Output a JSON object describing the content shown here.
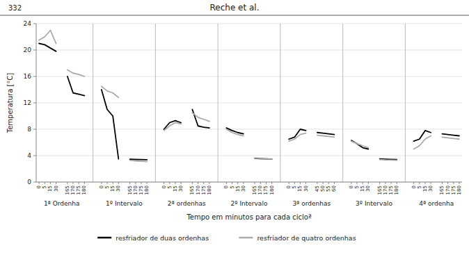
{
  "chart_data": {
    "type": "line",
    "title": "Reche et al.",
    "subtitle": "332",
    "x_label": "Tempo em minutos para cada cicloª",
    "y_label": "Temperatura [°C]",
    "annotations": [
      "1ª Ordenha",
      "1º Intervalo",
      "2ª ordenhas",
      "2º Intervalo",
      "3ª ordenhas",
      "3º Intervalo",
      "4ª ordenha"
    ],
    "categories": [
      "0",
      "5",
      "15",
      "30",
      null,
      "165",
      "170",
      "175",
      "180",
      null,
      null,
      "0",
      "5",
      "15",
      "30",
      null,
      "165",
      "170",
      "175",
      "180",
      null,
      null,
      "0",
      "5",
      "15",
      "30",
      null,
      "165",
      "170",
      "175",
      "180",
      null,
      null,
      "0",
      "5",
      "15",
      "30",
      null,
      "165",
      "170",
      "175",
      "180",
      null,
      null,
      "0",
      "5",
      "15",
      "30",
      null,
      "45",
      "50",
      "55",
      "60",
      null,
      null,
      "0",
      "5",
      "15",
      "30",
      null,
      "165",
      "170",
      "175",
      "180",
      null,
      null,
      "0",
      "5",
      "15",
      "30",
      null,
      "165",
      "170",
      "175",
      "180"
    ],
    "series": [
      {
        "name": "resfriador de duas ordenhas",
        "color": "#000000",
        "values": [
          21.0,
          20.8,
          20.3,
          19.8,
          null,
          16.0,
          13.5,
          13.3,
          13.1,
          null,
          null,
          14.0,
          11.0,
          10.0,
          3.5,
          null,
          3.45,
          3.42,
          3.4,
          3.38,
          null,
          null,
          8.0,
          9.0,
          9.3,
          9.0,
          null,
          11.0,
          8.5,
          8.3,
          8.2,
          null,
          null,
          8.2,
          7.8,
          7.5,
          7.3,
          null,
          3.6,
          3.55,
          3.5,
          3.45,
          null,
          null,
          6.5,
          6.8,
          8.0,
          7.8,
          null,
          7.5,
          7.4,
          7.3,
          7.2,
          null,
          null,
          6.3,
          5.8,
          5.2,
          5.0,
          null,
          3.5,
          3.45,
          3.42,
          3.4,
          null,
          null,
          6.2,
          6.5,
          7.8,
          7.5,
          null,
          7.3,
          7.2,
          7.1,
          7.0
        ]
      },
      {
        "name": "resfriador de quatro ordenhas",
        "color": "#aaaaaa",
        "values": [
          21.5,
          22.0,
          23.0,
          21.0,
          null,
          17.0,
          16.5,
          16.3,
          16.0,
          null,
          null,
          14.5,
          13.8,
          13.5,
          12.8,
          null,
          3.3,
          3.2,
          3.15,
          3.1,
          null,
          null,
          7.8,
          8.5,
          9.0,
          8.8,
          null,
          10.5,
          9.8,
          9.5,
          9.2,
          null,
          null,
          8.0,
          7.5,
          7.2,
          7.0,
          null,
          3.55,
          3.5,
          3.48,
          3.45,
          null,
          null,
          6.2,
          6.5,
          7.2,
          7.4,
          null,
          7.1,
          7.0,
          6.9,
          6.8,
          null,
          null,
          6.2,
          5.8,
          5.5,
          5.2,
          null,
          3.4,
          3.35,
          3.32,
          3.3,
          null,
          null,
          5.0,
          5.5,
          6.5,
          7.0,
          null,
          6.8,
          6.7,
          6.6,
          6.5
        ]
      }
    ],
    "ylim": [
      0,
      24
    ],
    "yticks": [
      0,
      4,
      8,
      12,
      16,
      20,
      24
    ],
    "grid": true,
    "legend": "bottom"
  }
}
